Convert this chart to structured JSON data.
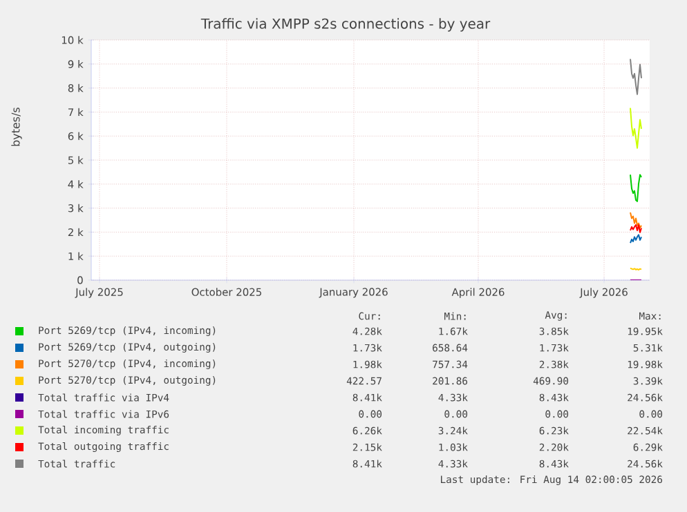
{
  "chart_data": {
    "type": "line",
    "title": "Traffic via XMPP s2s connections - by year",
    "ylabel": "bytes/s",
    "x": [
      "2026-07-20",
      "2026-07-21",
      "2026-07-22",
      "2026-07-23",
      "2026-07-24",
      "2026-07-25",
      "2026-07-26",
      "2026-07-27",
      "2026-07-28"
    ],
    "xlim": [
      "2025-06-25",
      "2026-08-03"
    ],
    "xticks": [
      {
        "value": "2025-07-01",
        "label": "July 2025"
      },
      {
        "value": "2025-10-01",
        "label": "October 2025"
      },
      {
        "value": "2026-01-01",
        "label": "January 2026"
      },
      {
        "value": "2026-04-01",
        "label": "April 2026"
      },
      {
        "value": "2026-07-01",
        "label": "July 2026"
      }
    ],
    "ylim": [
      0,
      10000
    ],
    "yticks": [
      0,
      {
        "value": 1000,
        "label": "1 k"
      },
      {
        "value": 2000,
        "label": "2 k"
      },
      {
        "value": 3000,
        "label": "3 k"
      },
      {
        "value": 4000,
        "label": "4 k"
      },
      {
        "value": 5000,
        "label": "5 k"
      },
      {
        "value": 6000,
        "label": "6 k"
      },
      {
        "value": 7000,
        "label": "7 k"
      },
      {
        "value": 8000,
        "label": "8 k"
      },
      {
        "value": 9000,
        "label": "9 k"
      },
      {
        "value": 10000,
        "label": "10 k"
      }
    ],
    "grid": true,
    "legend": "bottom",
    "line_style": "solid",
    "marker": "none",
    "series": [
      {
        "name": "Port 5269/tcp (IPv4, incoming)",
        "color": "#00cc00",
        "values": [
          4390,
          3810,
          3620,
          3720,
          3330,
          3280,
          4010,
          4390,
          4290
        ]
      },
      {
        "name": "Port 5269/tcp (IPv4, outgoing)",
        "color": "#0066b3",
        "values": [
          1550,
          1700,
          1610,
          1800,
          1670,
          1800,
          1890,
          1670,
          1800
        ]
      },
      {
        "name": "Port 5270/tcp (IPv4, incoming)",
        "color": "#ff8000",
        "values": [
          2820,
          2570,
          2660,
          2370,
          2570,
          2280,
          2370,
          2180,
          2280
        ]
      },
      {
        "name": "Port 5270/tcp (IPv4, outgoing)",
        "color": "#ffcc00",
        "values": [
          500,
          470,
          450,
          480,
          440,
          460,
          430,
          470,
          450
        ]
      },
      {
        "name": "Total traffic via IPv4",
        "color": "#330099",
        "values": [
          null,
          null,
          null,
          null,
          null,
          null,
          null,
          null,
          null
        ]
      },
      {
        "name": "Total traffic via IPv6",
        "color": "#990099",
        "values": [
          0,
          0,
          0,
          0,
          0,
          0,
          0,
          0,
          0
        ]
      },
      {
        "name": "Total incoming traffic",
        "color": "#ccff00",
        "values": [
          7170,
          6400,
          6020,
          6300,
          5920,
          5500,
          6110,
          6680,
          6300
        ]
      },
      {
        "name": "Total outgoing traffic",
        "color": "#ff0000",
        "values": [
          2070,
          2220,
          2110,
          2220,
          2300,
          2070,
          2300,
          1990,
          2170
        ]
      },
      {
        "name": "Total traffic",
        "color": "#808080",
        "values": [
          9210,
          8600,
          8410,
          8600,
          8120,
          7740,
          8410,
          8980,
          8410
        ]
      }
    ],
    "annotations": [
      "Cur:",
      "Min:",
      "Avg:",
      "Max:",
      "4.28k",
      "1.67k",
      "3.85k",
      "19.95k",
      "1.73k",
      "658.64",
      "1.73k",
      "5.31k",
      "1.98k",
      "757.34",
      "2.38k",
      "19.98k",
      "422.57",
      "201.86",
      "469.90",
      "3.39k",
      "8.41k",
      "4.33k",
      "8.43k",
      "24.56k",
      "0.00",
      "0.00",
      "0.00",
      "0.00",
      "6.26k",
      "3.24k",
      "6.23k",
      "22.54k",
      "2.15k",
      "1.03k",
      "2.20k",
      "6.29k",
      "8.41k",
      "4.33k",
      "8.43k",
      "24.56k",
      "Last update: Fri Aug 14 02:00:05 2026"
    ]
  }
}
